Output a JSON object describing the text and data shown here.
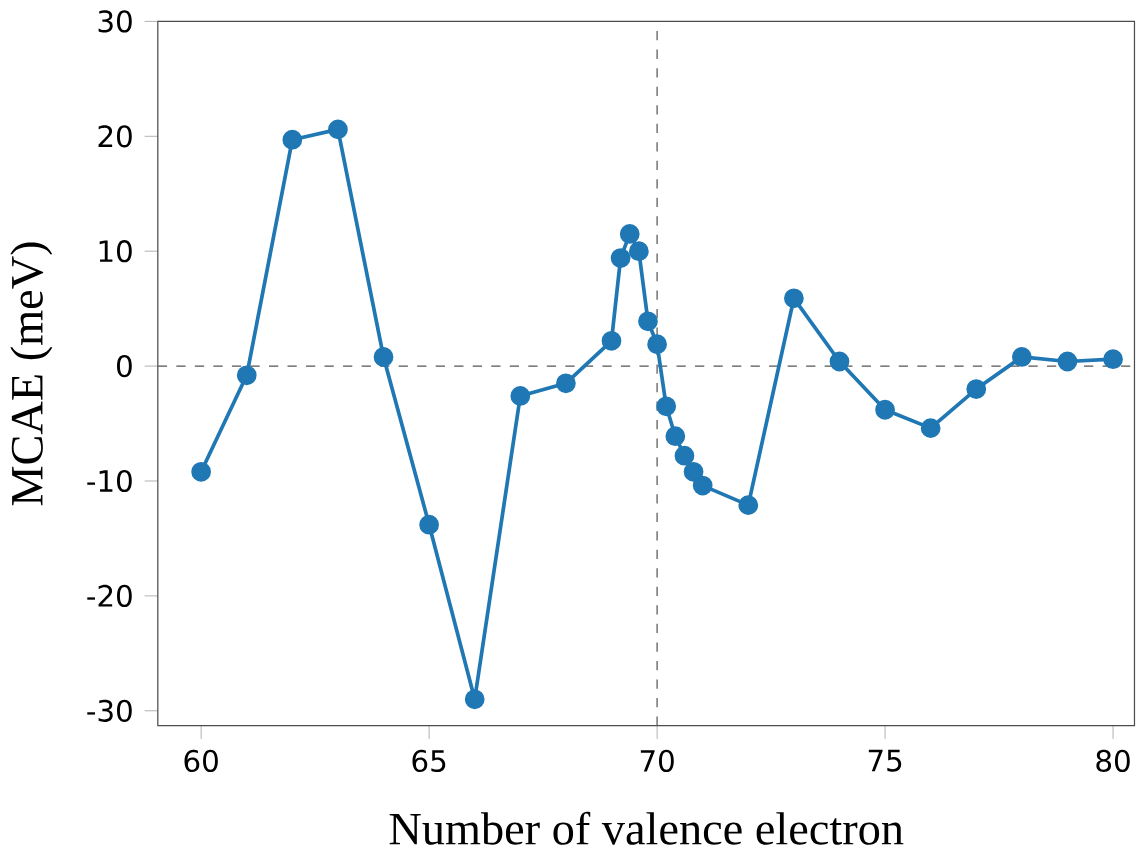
{
  "chart_data": {
    "type": "line",
    "xlabel": "Number of valence electron",
    "ylabel": "MCAE (meV)",
    "x": [
      60,
      61,
      62,
      63,
      64,
      65,
      66,
      67,
      68,
      69,
      69.2,
      69.4,
      69.6,
      69.8,
      70,
      70.2,
      70.4,
      70.6,
      70.8,
      71,
      72,
      73,
      74,
      75,
      76,
      77,
      78,
      79,
      80
    ],
    "series": [
      {
        "color": "#1f77b4",
        "values": [
          -9.2,
          -0.8,
          19.7,
          20.6,
          0.8,
          -13.8,
          -29.0,
          -2.6,
          -1.5,
          2.2,
          9.4,
          11.5,
          10.0,
          3.9,
          1.9,
          -3.5,
          -6.1,
          -7.8,
          -9.2,
          -10.4,
          -12.1,
          5.9,
          0.4,
          -3.8,
          -5.4,
          -2.0,
          0.8,
          0.4,
          0.6
        ]
      }
    ],
    "xlim": [
      59.05,
      80.47
    ],
    "ylim": [
      -31.3,
      30
    ],
    "xticks": [
      60,
      65,
      70,
      75,
      80
    ],
    "yticks": [
      -30,
      -20,
      -10,
      0,
      10,
      20,
      30
    ],
    "marker": "circle",
    "line_style": "solid",
    "ref_lines": [
      {
        "axis": "x",
        "value": 70,
        "color": "#555555",
        "line_style": "dashed"
      },
      {
        "axis": "y",
        "value": 0,
        "color": "#555555",
        "line_style": "dashed"
      }
    ]
  }
}
